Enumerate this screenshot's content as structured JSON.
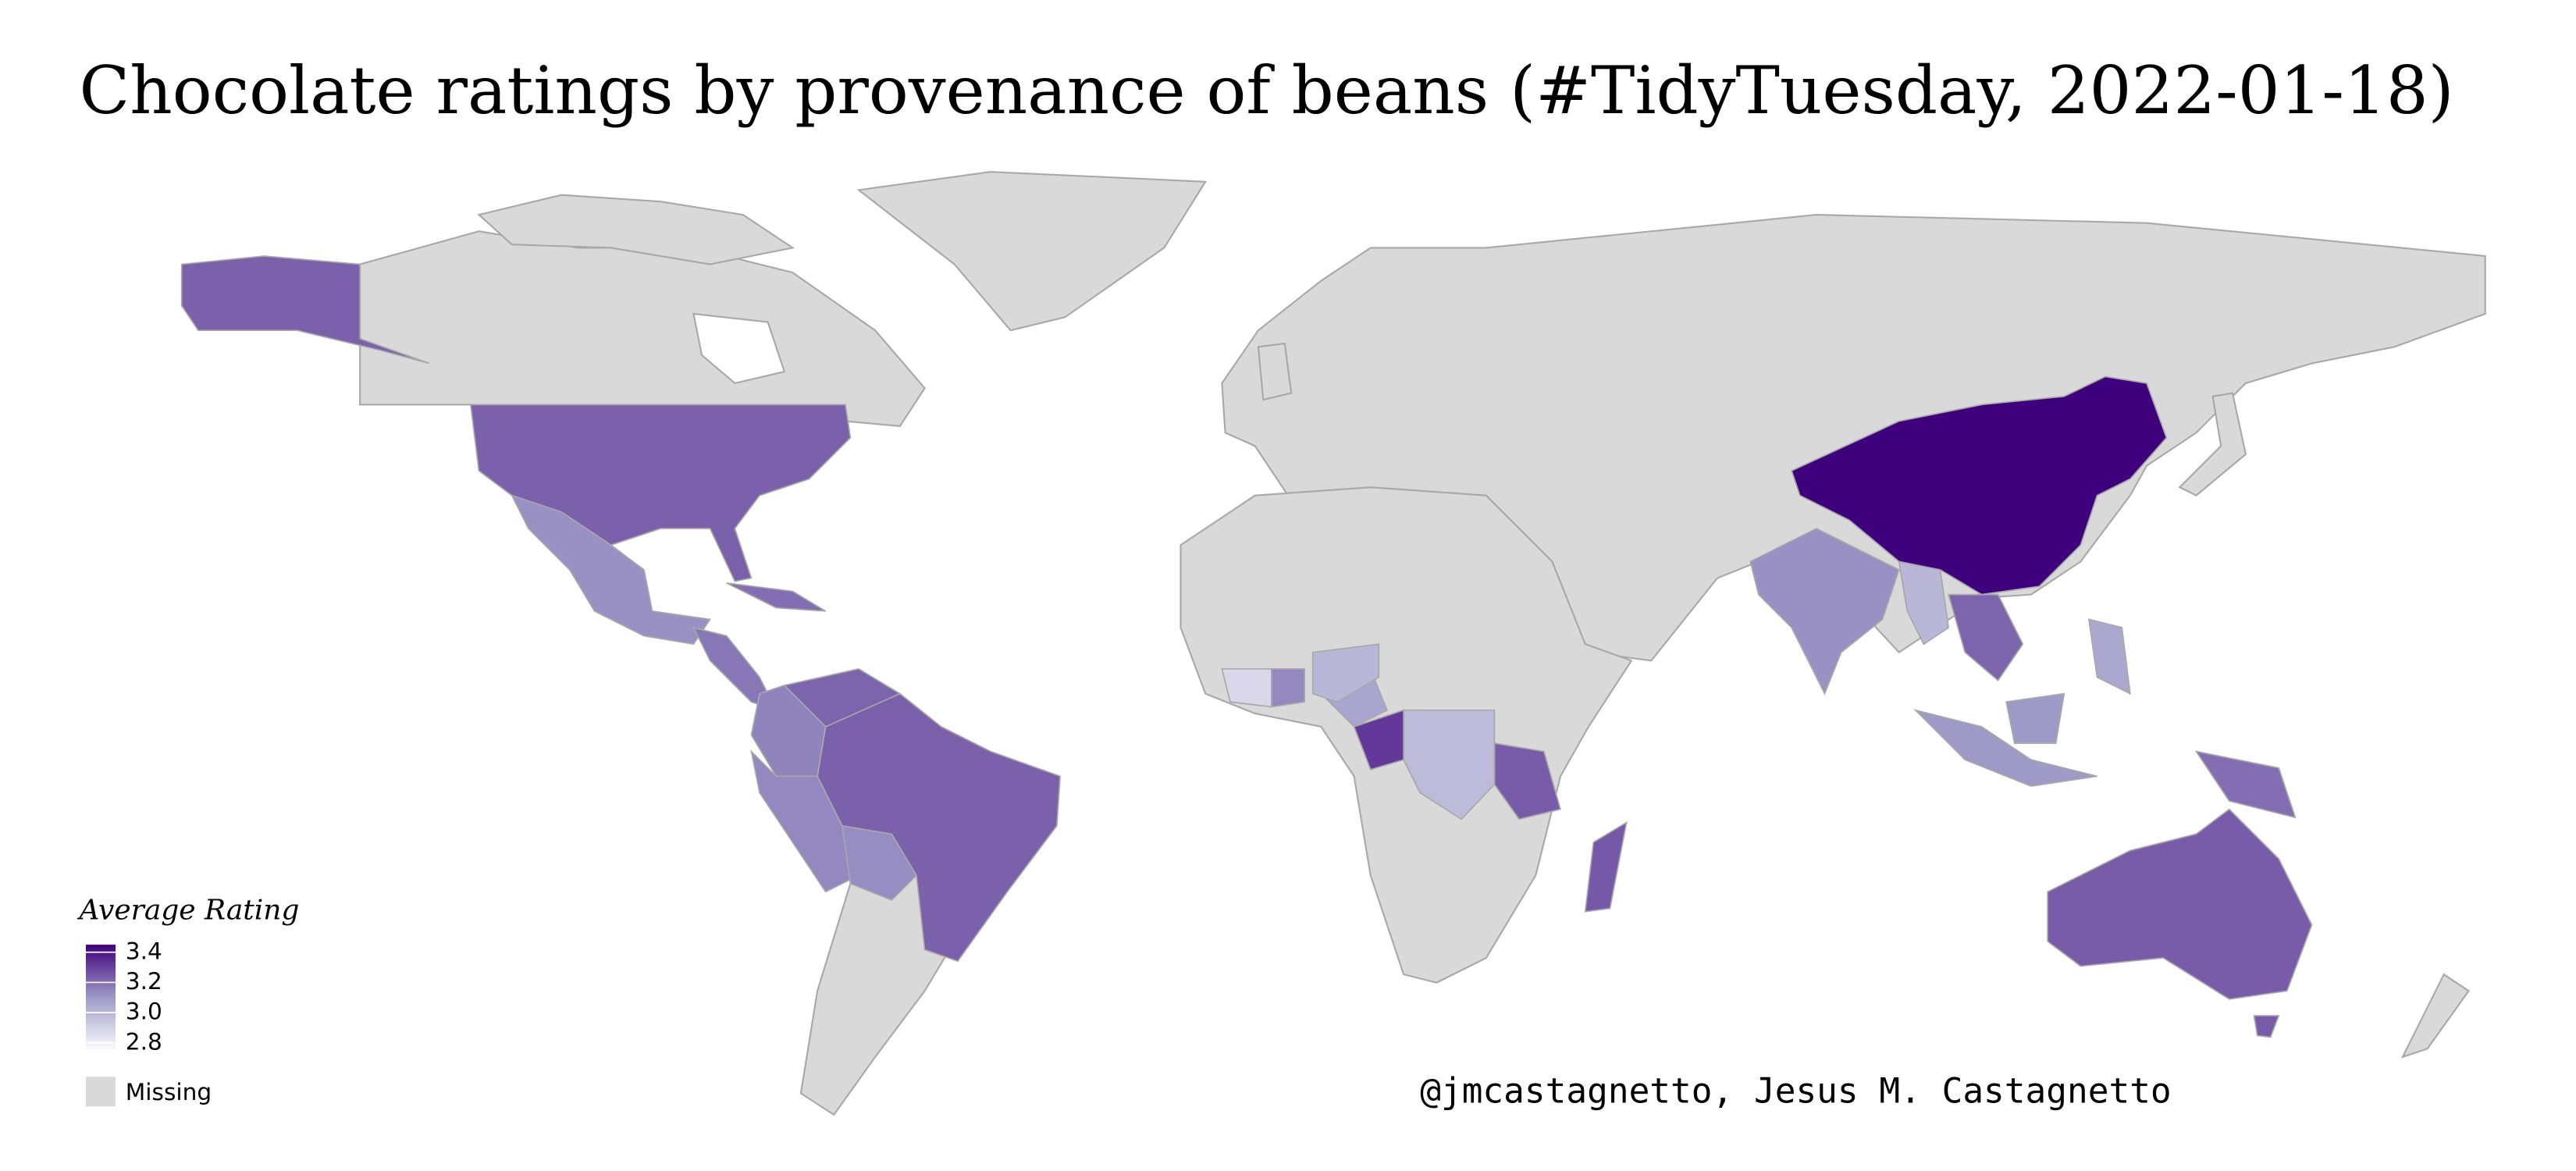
{
  "title": "Chocolate ratings by provenance of beans (#TidyTuesday, 2022-01-18)",
  "legend": {
    "title": "Average Rating",
    "ticks": [
      3.4,
      3.2,
      {
        "value": 3,
        "label": "3.0"
      },
      2.8
    ],
    "limits": [
      2.75,
      3.45
    ],
    "colors": [
      "#fcfbfd",
      "#9e9ac8",
      "#3f007d"
    ],
    "missing_label": "Missing",
    "missing_color": "#d9d9d9"
  },
  "regions": {
    "values": [
      3.23,
      3.12,
      3.18,
      3.2,
      3.22,
      3.15,
      3.14,
      3.13,
      3.23,
      3.25,
      3.24,
      2.98,
      3.32,
      3.06,
      3.0,
      3.14,
      2.88,
      3.12,
      3.0,
      3.45,
      3.22,
      3.1,
      3.05,
      3.2,
      3.24
    ]
  },
  "credit": "@jmcastagnetto, Jesus M. Castagnetto"
}
